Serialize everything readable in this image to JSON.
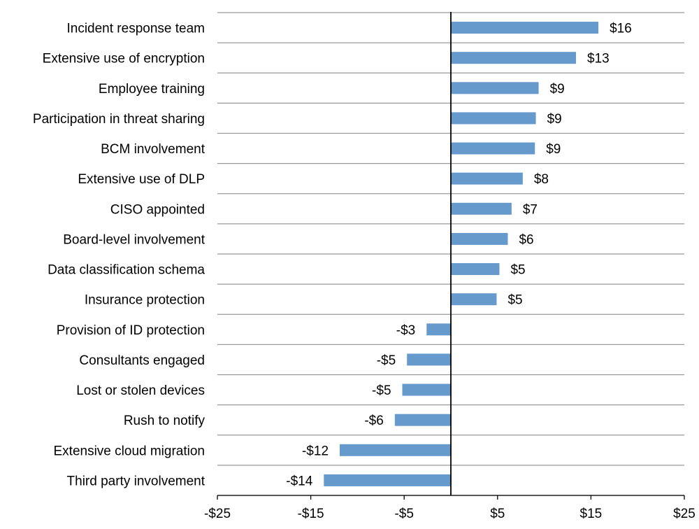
{
  "chart_data": {
    "type": "bar",
    "orientation": "horizontal",
    "title": "",
    "xlabel": "",
    "ylabel": "",
    "categories": [
      "Incident response team",
      "Extensive use of encryption",
      "Employee training",
      "Participation in threat sharing",
      "BCM involvement",
      "Extensive use of DLP",
      "CISO appointed",
      "Board-level involvement",
      "Data classification schema",
      "Insurance protection",
      "Provision of ID protection",
      "Consultants engaged",
      "Lost or stolen devices",
      "Rush to notify",
      "Extensive cloud migration",
      "Third party involvement"
    ],
    "values": [
      15.8,
      13.4,
      9.4,
      9.1,
      9.0,
      7.7,
      6.5,
      6.1,
      5.2,
      4.9,
      -2.6,
      -4.7,
      -5.2,
      -6.0,
      -11.9,
      -13.6
    ],
    "value_labels": [
      "$16",
      "$13",
      "$9",
      "$9",
      "$9",
      "$8",
      "$7",
      "$6",
      "$5",
      "$5",
      "-$3",
      "-$5",
      "-$5",
      "-$6",
      "-$12",
      "-$14"
    ],
    "xlim": [
      -25,
      25
    ],
    "xticks": [
      -25,
      -15,
      -5,
      5,
      15,
      25
    ],
    "xtick_labels": [
      "-$25",
      "-$15",
      "-$5",
      "$5",
      "$15",
      "$25"
    ],
    "grid": true,
    "bar_color": "#6699cc",
    "grid_color": "#999999",
    "axis_color": "#000000"
  }
}
